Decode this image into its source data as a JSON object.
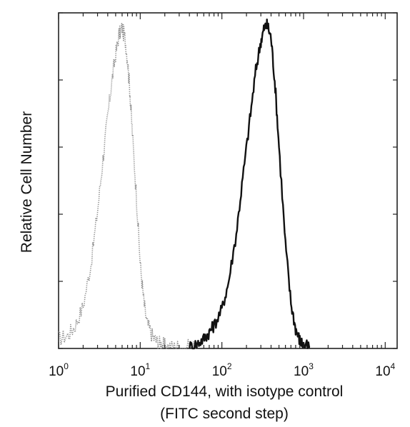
{
  "chart_data": {
    "type": "line",
    "title": "",
    "xlabel_line1": "Purified CD144, with isotype control",
    "xlabel_line2": "(FITC second step)",
    "ylabel": "Relative Cell Number",
    "xscale": "log",
    "xlim": [
      1,
      14000
    ],
    "ylim": [
      0,
      100
    ],
    "grid": false,
    "legend": "none",
    "x_ticks": [
      {
        "base": "10",
        "exp": "0",
        "value": 1
      },
      {
        "base": "10",
        "exp": "1",
        "value": 10
      },
      {
        "base": "10",
        "exp": "2",
        "value": 100
      },
      {
        "base": "10",
        "exp": "3",
        "value": 1000
      },
      {
        "base": "10",
        "exp": "4",
        "value": 10000
      }
    ],
    "series": [
      {
        "style": "dotted-gray",
        "color": "#8a8a8a",
        "x": [
          1.0,
          1.3,
          1.6,
          2.0,
          2.5,
          3.0,
          3.5,
          4.0,
          4.5,
          5.0,
          5.5,
          6.0,
          6.5,
          7.0,
          7.5,
          8.0,
          9.0,
          10,
          11,
          12,
          14,
          16,
          18,
          20,
          25,
          30,
          40,
          50
        ],
        "y": [
          3,
          4,
          7,
          13,
          26,
          42,
          58,
          71,
          82,
          90,
          96,
          98,
          95,
          88,
          78,
          66,
          46,
          26,
          15,
          8,
          4,
          2,
          1.2,
          0.8,
          0.5,
          0.4,
          0.3,
          0.2
        ]
      },
      {
        "style": "solid-black",
        "color": "#111111",
        "x": [
          40,
          50,
          60,
          70,
          80,
          100,
          120,
          150,
          180,
          220,
          260,
          300,
          330,
          360,
          400,
          450,
          500,
          600,
          700,
          800,
          900,
          1000,
          1200
        ],
        "y": [
          0.5,
          1.5,
          3,
          5,
          7,
          12,
          20,
          35,
          52,
          70,
          85,
          94,
          98,
          99,
          95,
          80,
          62,
          32,
          14,
          6,
          2.5,
          1,
          0.3
        ]
      }
    ]
  }
}
